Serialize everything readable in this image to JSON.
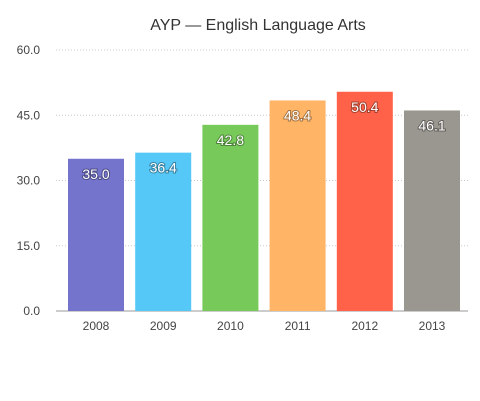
{
  "chart_data": {
    "type": "bar",
    "title": "AYP — English Language Arts",
    "xlabel": "",
    "ylabel": "",
    "categories": [
      "2008",
      "2009",
      "2010",
      "2011",
      "2012",
      "2013"
    ],
    "values": [
      35.0,
      36.4,
      42.8,
      48.4,
      50.4,
      46.1
    ],
    "value_labels": [
      "35.0",
      "36.4",
      "42.8",
      "48.4",
      "50.4",
      "46.1"
    ],
    "colors": [
      "#7474cc",
      "#55c8f8",
      "#77c95a",
      "#ffb466",
      "#ff6248",
      "#9a9690"
    ],
    "ylim": [
      0,
      60
    ],
    "yticks": [
      0,
      15,
      30,
      45,
      60
    ],
    "ytick_labels": [
      "0.0",
      "15.0",
      "30.0",
      "45.0",
      "60.0"
    ],
    "grid": true,
    "legend": "none"
  }
}
